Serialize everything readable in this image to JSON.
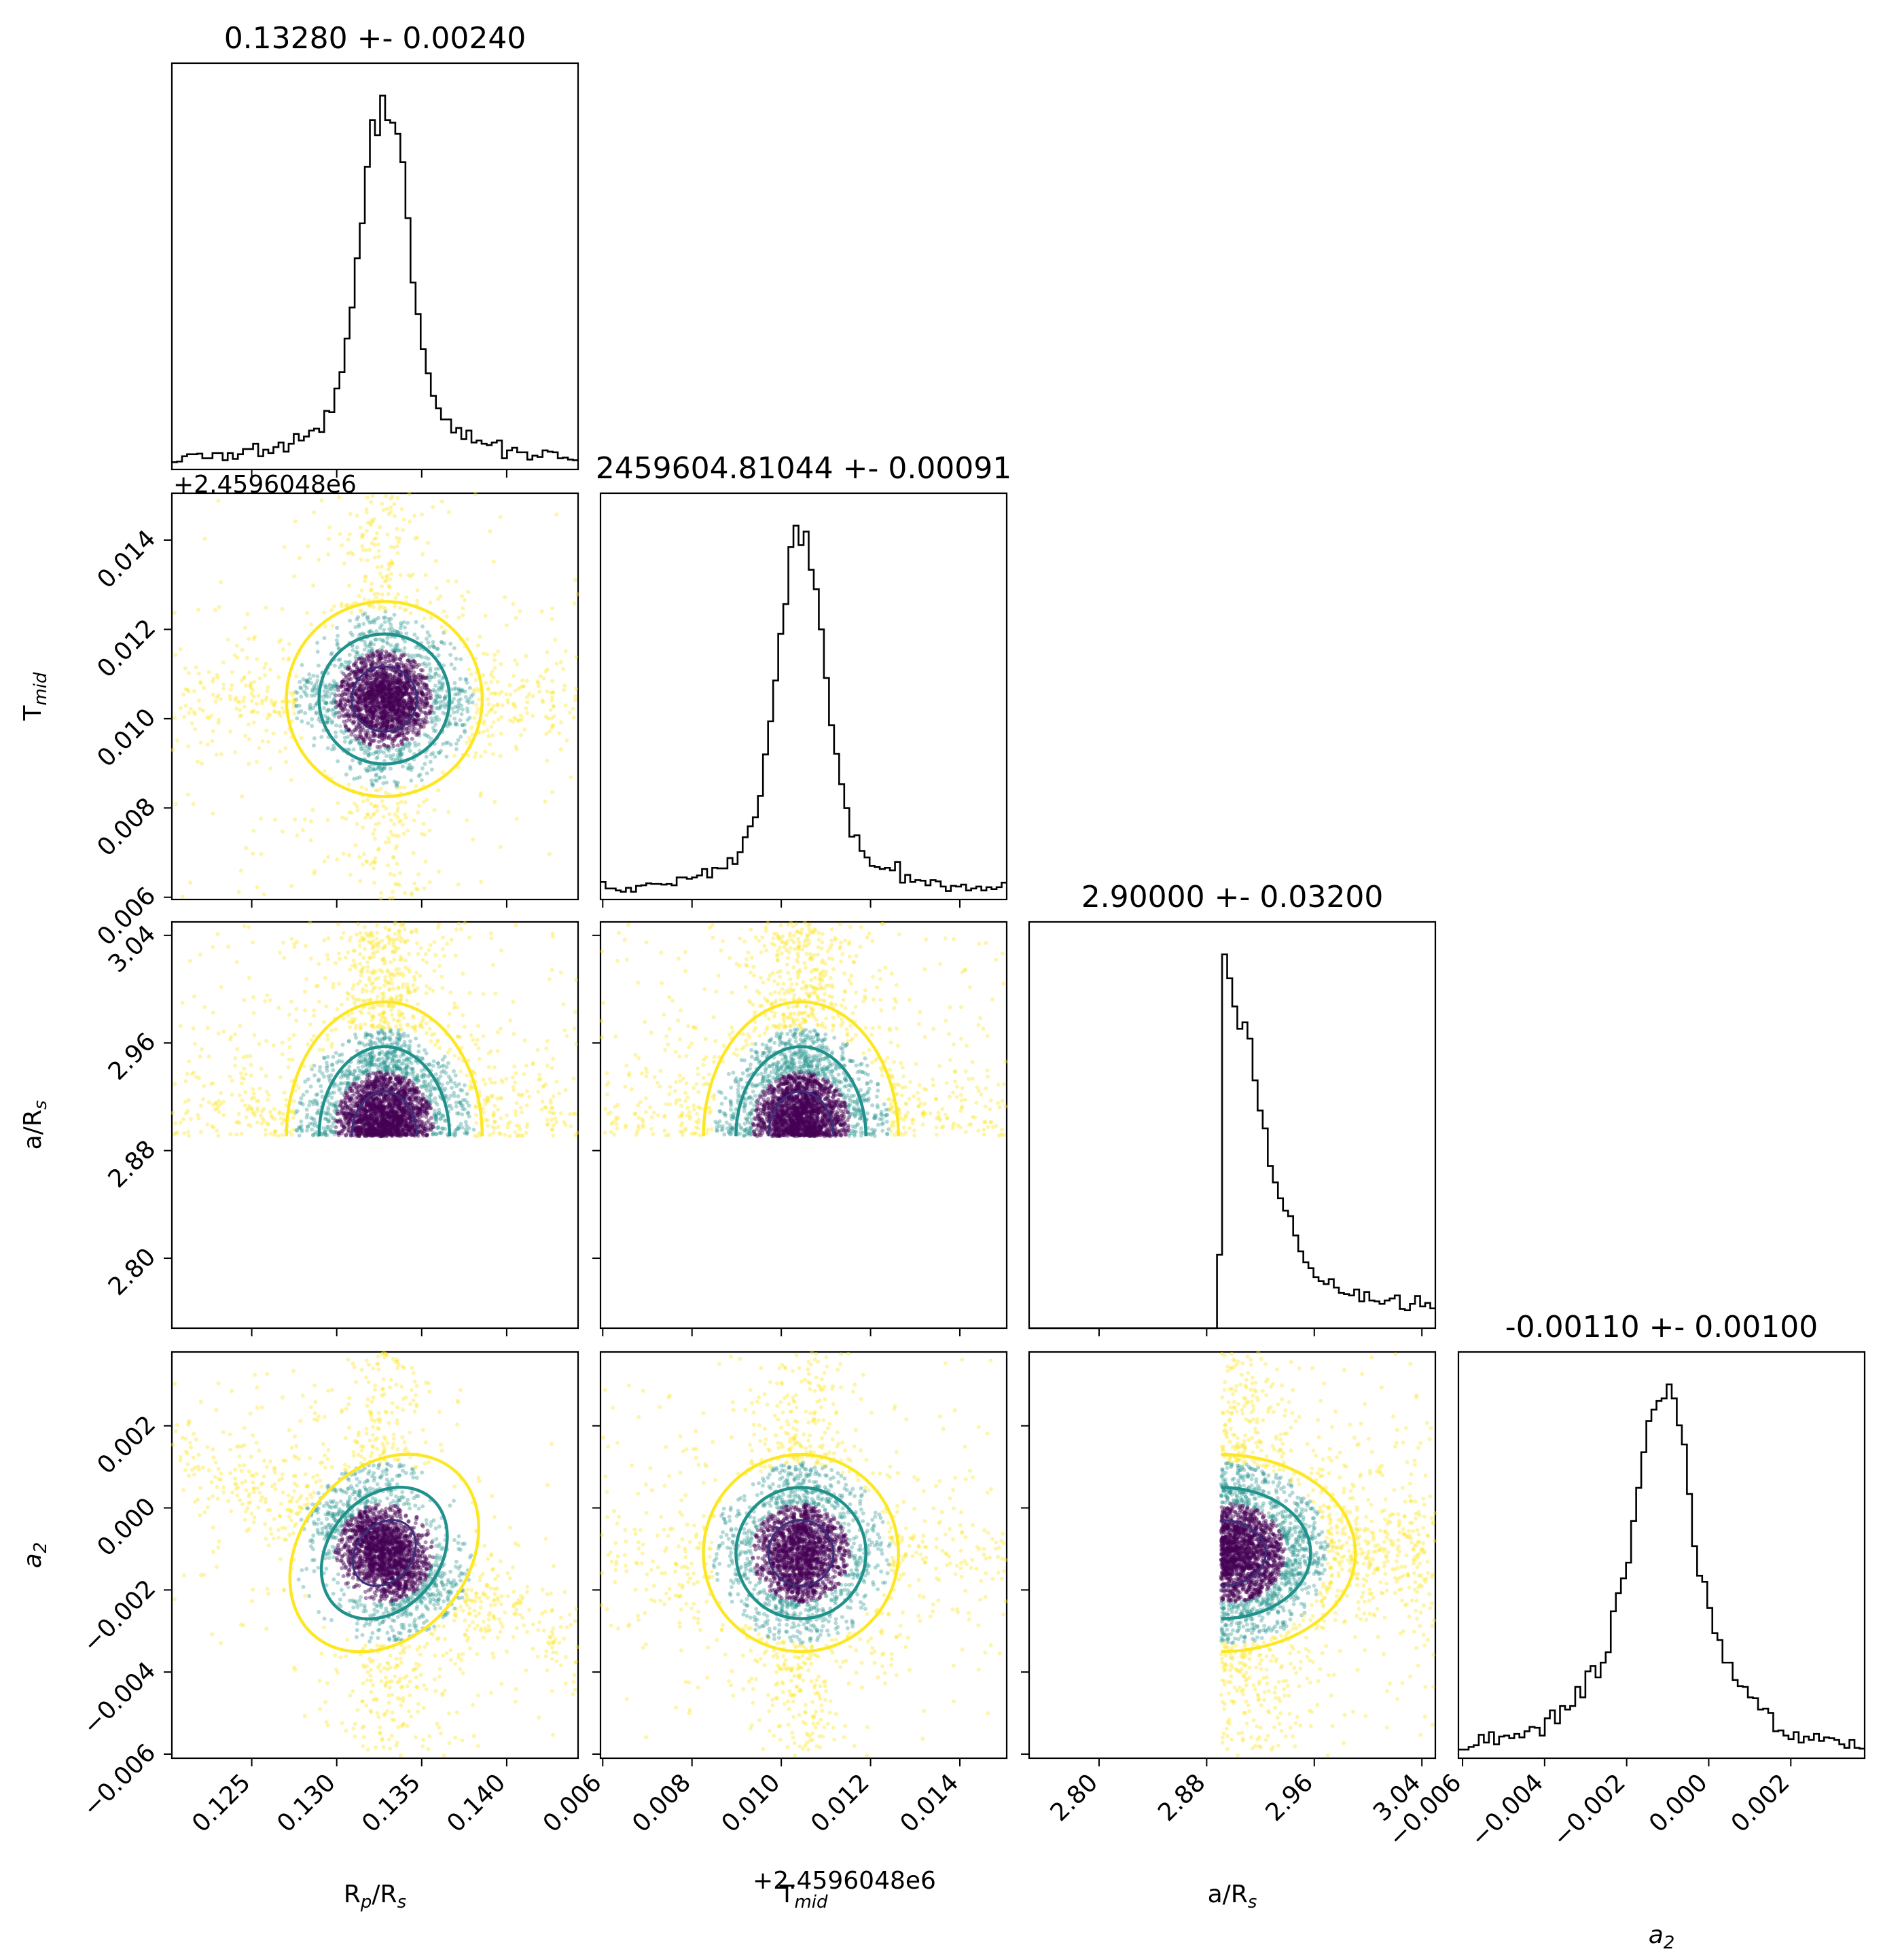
{
  "chart_data": {
    "type": "scatter",
    "kind": "corner plot (1-D histograms on diagonal, 2-D scatter with contours off-diagonal)",
    "parameters": [
      {
        "key": "rp",
        "label": "R",
        "label_sub": "p",
        "label_tail": "/R",
        "label_tail_sub": "s",
        "title": "0.13280 +- 0.00240",
        "median": 0.1328,
        "sigma": 0.0024,
        "range": [
          0.1203,
          0.1442
        ],
        "ticks": [
          0.125,
          0.13,
          0.135,
          0.14
        ],
        "tick_labels": [
          "0.125",
          "0.130",
          "0.135",
          "0.140"
        ]
      },
      {
        "key": "tmid",
        "label": "T",
        "label_sub": "mid",
        "label_tail": "",
        "label_tail_sub": "",
        "title": "2459604.81044 +- 0.00091",
        "median": 0.01044,
        "sigma": 0.00091,
        "range": [
          0.00595,
          0.01505
        ],
        "ticks": [
          0.006,
          0.008,
          0.01,
          0.012,
          0.014
        ],
        "tick_labels": [
          "0.006",
          "0.008",
          "0.010",
          "0.012",
          "0.014"
        ],
        "offset_text": "+2.4596048e6"
      },
      {
        "key": "ars",
        "label": "a/R",
        "label_sub": "s",
        "label_tail": "",
        "label_tail_sub": "",
        "title": "2.90000 +- 0.03200",
        "median": 2.9,
        "sigma": 0.032,
        "range": [
          2.748,
          3.05
        ],
        "ticks": [
          2.8,
          2.88,
          2.96,
          3.04
        ],
        "tick_labels": [
          "2.80",
          "2.88",
          "2.96",
          "3.04"
        ],
        "lower_bound": 2.8907
      },
      {
        "key": "a2",
        "label": "a",
        "label_sub": "2",
        "label_tail": "",
        "label_tail_sub": "",
        "label_italic": true,
        "title": "-0.00110 +- 0.00100",
        "median": -0.0011,
        "sigma": 0.001,
        "range": [
          -0.0061,
          0.0038
        ],
        "ticks": [
          -0.006,
          -0.004,
          -0.002,
          0.0,
          0.002
        ],
        "tick_labels": [
          "−0.006",
          "−0.004",
          "−0.002",
          "0.000",
          "0.002"
        ]
      }
    ],
    "offset_text_top_panel": "+2.4596048e6",
    "correlations": {
      "rp-tmid": 0.0,
      "rp-ars": 0.0,
      "tmid-ars": 0.0,
      "rp-a2": -0.55,
      "tmid-a2": 0.0,
      "ars-a2": 0.0
    },
    "contour_levels": [
      "1-sigma",
      "2-sigma",
      "3-sigma"
    ],
    "colors": {
      "contour_inner": "#3b2f7a",
      "contour_mid": "#21918c",
      "contour_outer": "#fde725",
      "points_core": "#440154",
      "points_mid": "#21918c",
      "points_outer": "#fde725",
      "histogram": "#000000"
    },
    "grid": false,
    "legend": "none"
  }
}
